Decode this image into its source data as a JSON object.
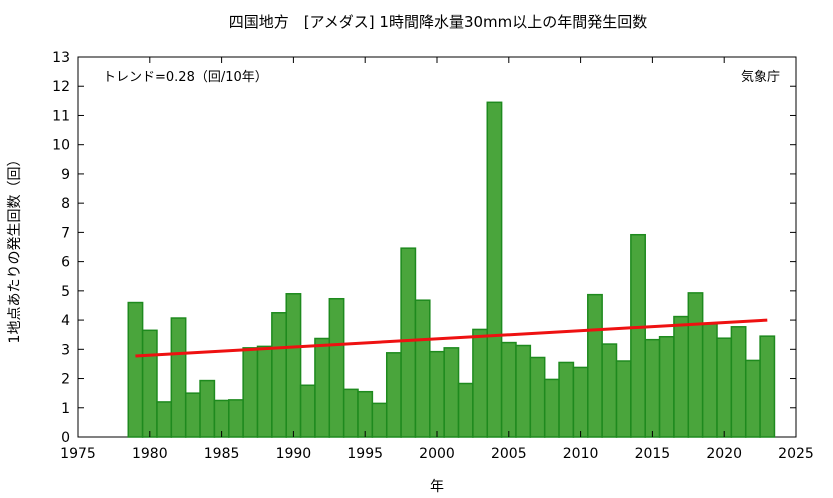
{
  "chart_data": {
    "type": "bar",
    "title": "四国地方　[アメダス] 1時間降水量30mm以上の年間発生回数",
    "xlabel": "年",
    "ylabel": "1地点あたりの発生回数（回）",
    "trend_label": "トレンド=0.28（回/10年）",
    "source_label": "気象庁",
    "xlim": [
      1975,
      2025
    ],
    "ylim": [
      0,
      13
    ],
    "x_ticks": [
      1975,
      1980,
      1985,
      1990,
      1995,
      2000,
      2005,
      2010,
      2015,
      2020,
      2025
    ],
    "y_ticks": [
      0,
      1,
      2,
      3,
      4,
      5,
      6,
      7,
      8,
      9,
      10,
      11,
      12,
      13
    ],
    "grid": false,
    "bar_color": "#4aa53c",
    "bar_edge_color": "#1e8a1e",
    "trend_color": "#ee1111",
    "years": [
      1979,
      1980,
      1981,
      1982,
      1983,
      1984,
      1985,
      1986,
      1987,
      1988,
      1989,
      1990,
      1991,
      1992,
      1993,
      1994,
      1995,
      1996,
      1997,
      1998,
      1999,
      2000,
      2001,
      2002,
      2003,
      2004,
      2005,
      2006,
      2007,
      2008,
      2009,
      2010,
      2011,
      2012,
      2013,
      2014,
      2015,
      2016,
      2017,
      2018,
      2019,
      2020,
      2021,
      2022,
      2023
    ],
    "values": [
      4.6,
      3.65,
      1.2,
      4.07,
      1.5,
      1.93,
      1.25,
      1.27,
      3.05,
      3.1,
      4.25,
      4.9,
      1.77,
      3.37,
      4.73,
      1.63,
      1.55,
      1.15,
      2.88,
      6.46,
      4.68,
      2.92,
      3.05,
      1.83,
      3.68,
      11.45,
      3.23,
      3.13,
      2.72,
      1.97,
      2.55,
      2.38,
      4.87,
      3.18,
      2.6,
      6.92,
      3.33,
      3.43,
      4.12,
      4.93,
      3.87,
      3.38,
      3.77,
      2.62,
      3.45
    ],
    "trend": {
      "x": [
        1979,
        2023
      ],
      "y": [
        2.77,
        4.0
      ]
    }
  }
}
